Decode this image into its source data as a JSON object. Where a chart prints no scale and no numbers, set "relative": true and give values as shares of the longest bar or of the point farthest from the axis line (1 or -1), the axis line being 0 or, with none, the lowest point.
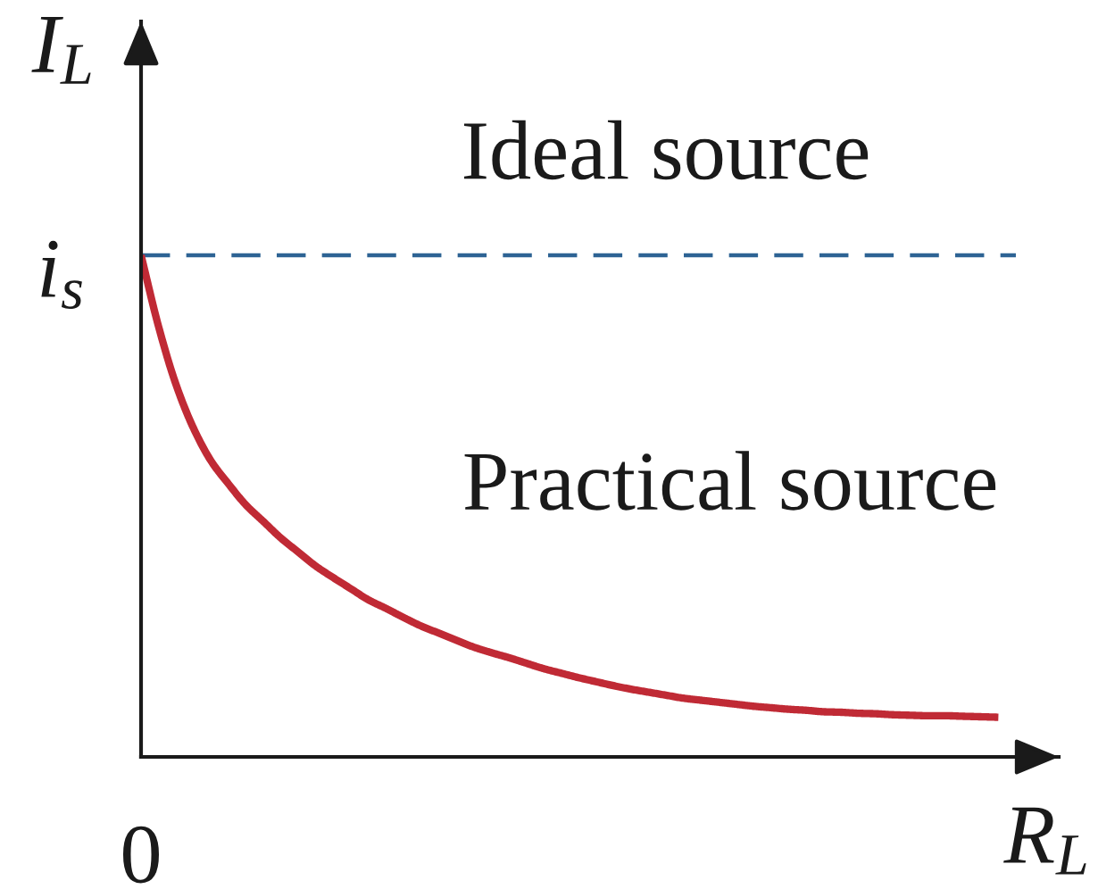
{
  "chart_data": {
    "type": "line",
    "relative": true,
    "xlabel": "R$_{L}$",
    "ylabel": "I$_{L}$",
    "categories": [
      null,
      null,
      null,
      null,
      null,
      null,
      null,
      null,
      null,
      null,
      null,
      null,
      null,
      null,
      null,
      null,
      null,
      null,
      null,
      null,
      null,
      null,
      null,
      null,
      null,
      null,
      null,
      null,
      null,
      null,
      null,
      null,
      null,
      null,
      null,
      null,
      null,
      null,
      null,
      null,
      null,
      null,
      null,
      null,
      null,
      null,
      null,
      null,
      null,
      null,
      null
    ],
    "series": [
      {
        "name": "Ideal source",
        "color": "#2d6394",
        "line_style": "dashed",
        "values": [
          1,
          1,
          1,
          1,
          1,
          1,
          1,
          1,
          1,
          1,
          1,
          1,
          1,
          1,
          1,
          1,
          1,
          1,
          1,
          1,
          1,
          1,
          1,
          1,
          1,
          1,
          1,
          1,
          1,
          1,
          1,
          1,
          1,
          1,
          1,
          1,
          1,
          1,
          1,
          1,
          1,
          1,
          1,
          1,
          1,
          1,
          1,
          1,
          1,
          1,
          1
        ]
      },
      {
        "name": "Practical source",
        "color": "#c02a35",
        "line_style": "solid",
        "values": [
          1,
          0.858,
          0.742,
          0.655,
          0.59,
          0.544,
          0.502,
          0.469,
          0.436,
          0.408,
          0.38,
          0.357,
          0.335,
          0.313,
          0.296,
          0.278,
          0.261,
          0.247,
          0.233,
          0.219,
          0.208,
          0.198,
          0.187,
          0.176,
          0.167,
          0.158,
          0.15,
          0.142,
          0.135,
          0.129,
          0.123,
          0.117,
          0.113,
          0.109,
          0.105,
          0.101,
          0.098,
          0.095,
          0.093,
          0.09,
          0.089,
          0.087,
          0.086,
          0.084,
          0.083,
          0.082,
          0.082,
          0.081,
          0.08,
          0.079,
          null
        ]
      }
    ],
    "annotations": [
      "0",
      "i$_{s}$"
    ]
  }
}
